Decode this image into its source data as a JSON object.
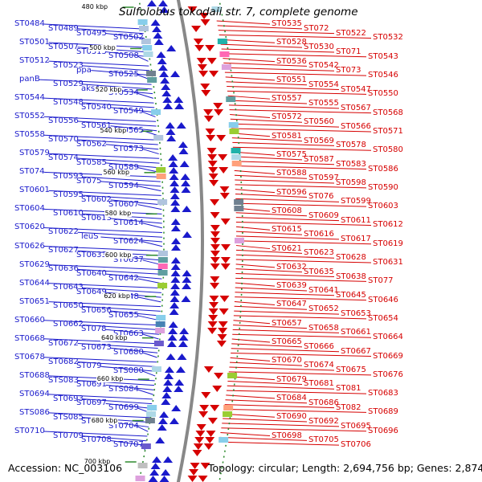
{
  "title": "Sulfolobus tokodaii str. 7, complete genome",
  "accession": "Accession: NC_003106",
  "topology": "Topology: circular; Length: 2,694,756 bp; Genes: 2,874",
  "colors": {
    "reverse_strand": "#1a1acc",
    "forward_strand": "#d60000",
    "backbone": "#888888",
    "dotted_circle": "#2e8b2e"
  },
  "ticks": [
    "480 kbp",
    "500 kbp",
    "520 kbp",
    "540 kbp",
    "560 kbp",
    "580 kbp",
    "600 kbp",
    "620 kbp",
    "640 kbp",
    "660 kbp",
    "680 kbp",
    "700 kbp"
  ],
  "left_genes": [
    "ST0484",
    "ST0489",
    "ST0495",
    "ST0502",
    "ST0501",
    "ST0507",
    "ST0515",
    "ST0508",
    "ST0512",
    "ST0523",
    "ppa",
    "ST0525",
    "panB",
    "ST0529",
    "aksA",
    "ST0534",
    "ST0544",
    "ST0548",
    "ST0540",
    "ST0549",
    "ST0552",
    "ST0556",
    "ST0561",
    "ST0565",
    "ST0558",
    "ST0570",
    "ST0562",
    "ST0573",
    "ST0579",
    "ST0574",
    "ST0585",
    "ST0589",
    "ST074",
    "ST0593",
    "ST075",
    "ST0594",
    "ST0601",
    "ST0595",
    "ST0602",
    "ST0607",
    "ST0604",
    "ST0610",
    "ST0613",
    "ST0614",
    "ST0620",
    "ST0622",
    "leuS",
    "ST0624",
    "ST0626",
    "ST0627",
    "ST0633",
    "ST0637",
    "ST0629",
    "ST0636",
    "ST0640",
    "ST0642",
    "ST0644",
    "ST0643",
    "ST0649",
    "ST0648",
    "ST0651",
    "ST0650",
    "ST0656",
    "ST0655",
    "ST0660",
    "ST0662",
    "ST078",
    "ST0663",
    "ST0668",
    "ST0672",
    "ST0673",
    "ST0680",
    "ST0678",
    "ST0682",
    "ST079",
    "STS080",
    "ST0688",
    "STS083",
    "ST0691",
    "STS084",
    "ST0694",
    "ST0693",
    "ST0697",
    "ST0699",
    "STS086",
    "STS085",
    "ST0702",
    "ST0704",
    "ST0710",
    "ST0709",
    "ST0708",
    "ST0707"
  ],
  "right_genes": [
    "ST0535",
    "ST072",
    "ST0522",
    "ST0532",
    "ST0528",
    "ST0530",
    "ST071",
    "ST0543",
    "ST0536",
    "ST0542",
    "ST073",
    "ST0546",
    "ST0551",
    "ST0554",
    "ST0547",
    "ST0550",
    "ST0557",
    "ST0555",
    "ST0567",
    "ST0568",
    "ST0572",
    "ST0560",
    "ST0566",
    "ST0571",
    "ST0581",
    "ST0569",
    "ST0578",
    "ST0580",
    "ST0575",
    "ST0587",
    "ST0583",
    "ST0586",
    "ST0588",
    "ST0597",
    "ST0598",
    "ST0590",
    "ST0596",
    "ST076",
    "ST0599",
    "ST0603",
    "ST0608",
    "ST0609",
    "ST0611",
    "ST0612",
    "ST0615",
    "ST0616",
    "ST0617",
    "ST0619",
    "ST0621",
    "ST0623",
    "ST0628",
    "ST0631",
    "ST0632",
    "ST0635",
    "ST0638",
    "ST077",
    "ST0639",
    "ST0641",
    "ST0645",
    "ST0646",
    "ST0647",
    "ST0652",
    "ST0653",
    "ST0654",
    "ST0657",
    "ST0658",
    "ST0661",
    "ST0664",
    "ST0665",
    "ST0666",
    "ST0667",
    "ST0669",
    "ST0670",
    "ST0674",
    "ST0675",
    "ST0676",
    "ST0679",
    "ST0681",
    "ST081",
    "ST0683",
    "ST0684",
    "ST0686",
    "ST082",
    "ST0689",
    "ST0690",
    "ST0692",
    "ST0695",
    "ST0696",
    "ST0698",
    "ST0705",
    "ST0706"
  ]
}
